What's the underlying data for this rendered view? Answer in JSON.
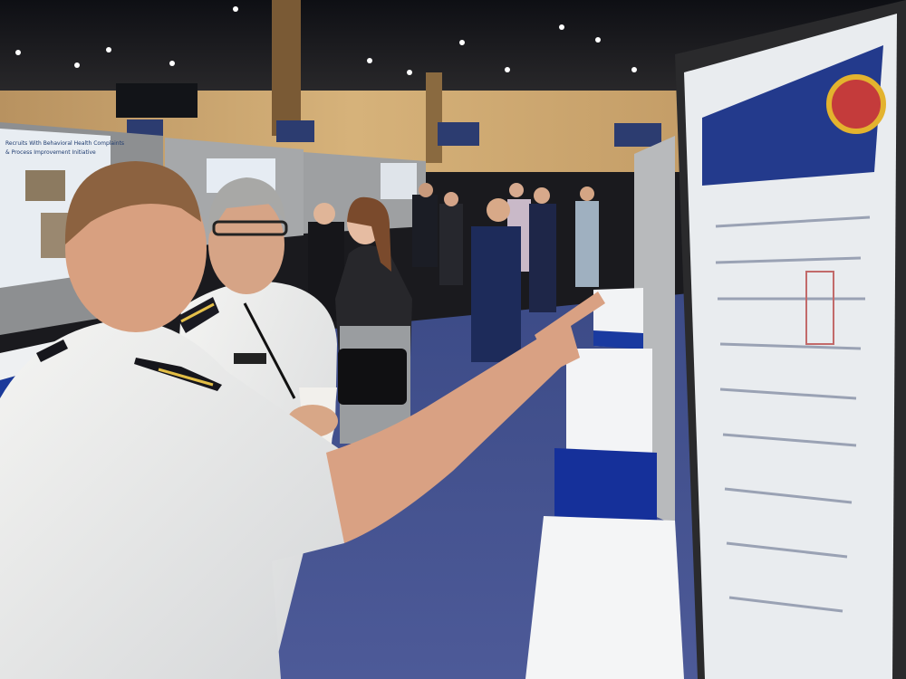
{
  "poster": {
    "title_lines": [
      "Recruits With Behavioral Health Complaints",
      "& Process Improvement Initiative"
    ]
  }
}
